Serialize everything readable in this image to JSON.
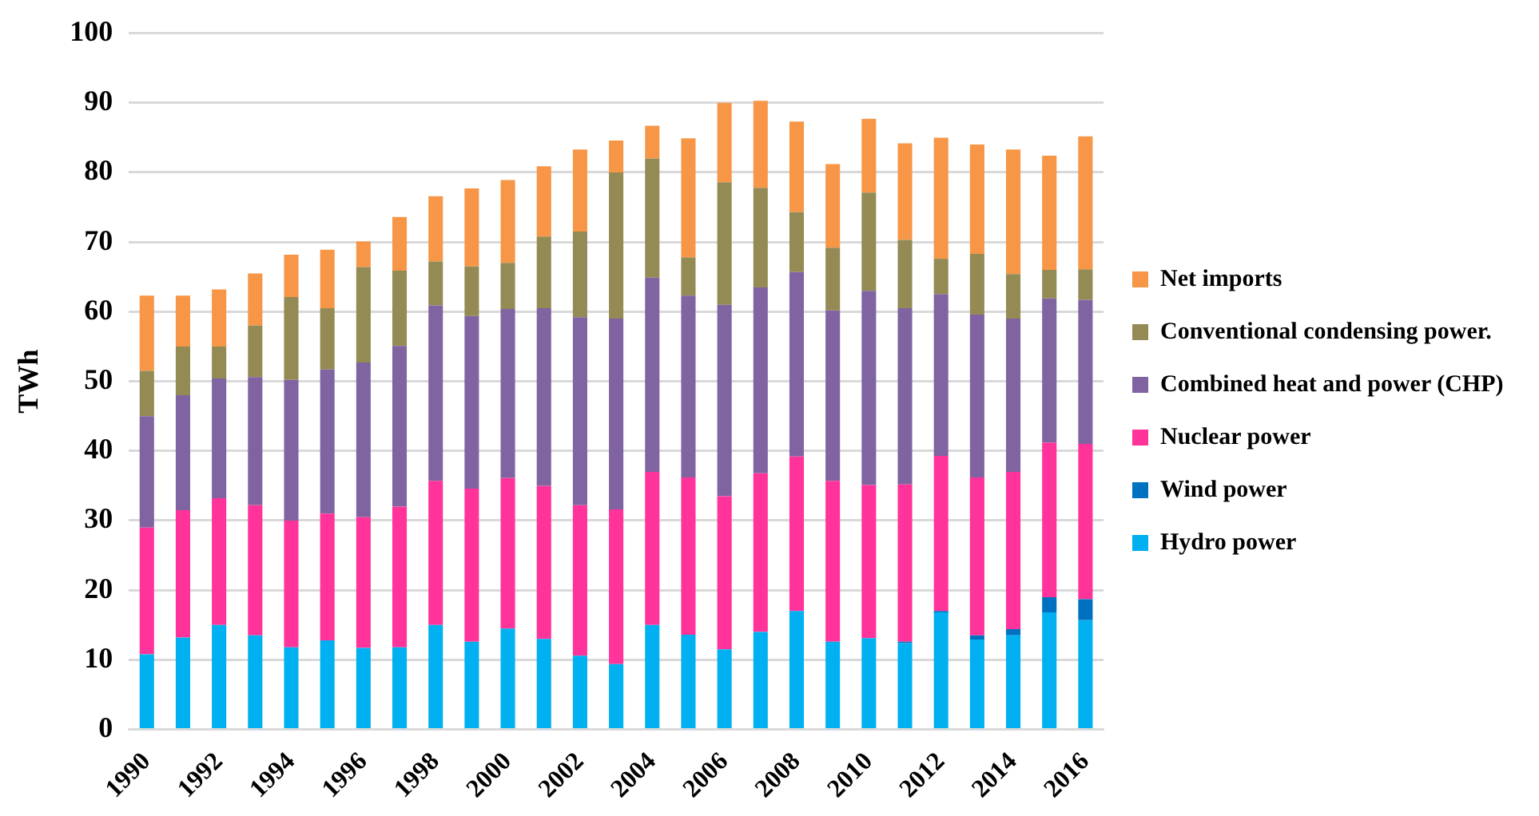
{
  "chart_data": {
    "type": "bar",
    "stacked": true,
    "ylabel": "TWh",
    "ylim": [
      0,
      100
    ],
    "yticks": [
      0,
      10,
      20,
      30,
      40,
      50,
      60,
      70,
      80,
      90,
      100
    ],
    "grid": "y",
    "legend": "right",
    "categories": [
      "1990",
      null,
      "1992",
      null,
      "1994",
      null,
      "1996",
      null,
      "1998",
      null,
      "2000",
      null,
      "2002",
      null,
      "2004",
      null,
      "2006",
      null,
      "2008",
      null,
      "2010",
      null,
      "2012",
      null,
      "2014",
      null,
      "2016"
    ],
    "series": [
      {
        "name": "Hydro power",
        "color": "#00b0f0",
        "values": [
          10.8,
          13.2,
          15,
          13.5,
          11.8,
          12.8,
          11.7,
          11.8,
          15,
          12.6,
          14.5,
          13,
          10.6,
          9.4,
          15,
          13.6,
          11.5,
          14,
          17,
          12.6,
          13.1,
          12.4,
          16.8,
          12.9,
          13.5,
          16.8,
          15.7
        ]
      },
      {
        "name": "Wind power",
        "color": "#0070c0",
        "values": [
          0,
          0,
          0,
          0,
          0,
          0,
          0,
          0,
          0,
          0,
          0,
          0,
          0,
          0,
          0,
          0,
          0,
          0,
          0,
          0,
          0,
          0.2,
          0.2,
          0.6,
          0.9,
          2.2,
          3
        ]
      },
      {
        "name": "Nuclear power",
        "color": "#ff3399",
        "values": [
          18.2,
          18.3,
          18.2,
          18.7,
          18.2,
          18.2,
          18.8,
          20.2,
          20.7,
          22,
          21.6,
          22,
          21.6,
          22.2,
          22,
          22.6,
          22,
          22.8,
          22.2,
          23.1,
          22,
          22.6,
          22.3,
          22.7,
          22.6,
          22.2,
          22.3
        ]
      },
      {
        "name": "Combined heat and power (CHP)",
        "color": "#8064a2",
        "values": [
          16,
          16.5,
          17.2,
          18.4,
          20.2,
          20.7,
          22.2,
          23.1,
          25.2,
          24.8,
          24.3,
          25.5,
          27,
          27.4,
          27.9,
          26.1,
          27.5,
          26.7,
          26.5,
          24.5,
          27.9,
          25.3,
          23.2,
          23.4,
          22,
          20.7,
          20.7
        ]
      },
      {
        "name": "Conventional condensing power.",
        "color": "#948a54",
        "values": [
          6.5,
          7,
          4.6,
          7.4,
          11.9,
          8.8,
          13.7,
          10.8,
          6.3,
          7.1,
          6.6,
          10.3,
          12.3,
          21,
          17.1,
          5.5,
          17.6,
          14.3,
          8.6,
          9,
          14.1,
          9.8,
          5.1,
          8.7,
          6.4,
          4.1,
          4.4
        ]
      },
      {
        "name": "Net imports",
        "color": "#f79646",
        "values": [
          10.8,
          7.3,
          8.2,
          7.5,
          6.1,
          8.4,
          3.7,
          7.7,
          9.4,
          11.2,
          11.9,
          10.1,
          11.8,
          4.6,
          4.7,
          17.1,
          11.4,
          12.5,
          13,
          12,
          10.6,
          13.9,
          17.4,
          15.7,
          17.9,
          16.4,
          19.1
        ]
      }
    ]
  }
}
